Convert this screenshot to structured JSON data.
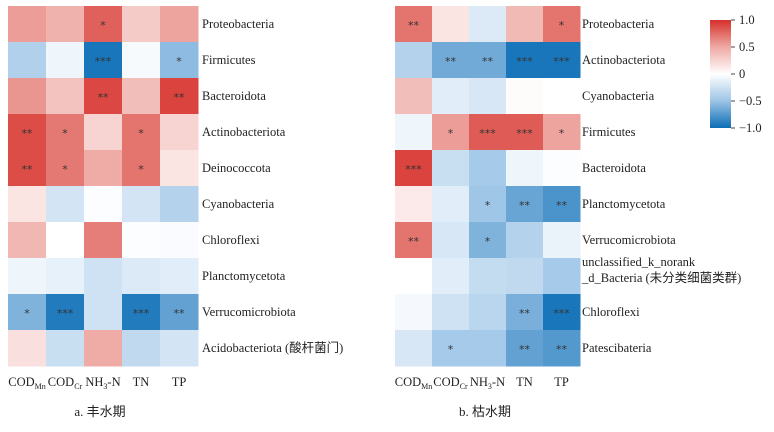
{
  "chart_data": [
    {
      "type": "heatmap",
      "title": "a. 丰水期",
      "columns": [
        "CODMn",
        "CODCr",
        "NH3-N",
        "TN",
        "TP"
      ],
      "column_labels": [
        {
          "base": "COD",
          "sub": "Mn",
          "rest": ""
        },
        {
          "base": "COD",
          "sub": "Cr",
          "rest": ""
        },
        {
          "base": "NH",
          "sub": "3",
          "rest": "-N"
        },
        {
          "base": "TN",
          "sub": "",
          "rest": ""
        },
        {
          "base": "TP",
          "sub": "",
          "rest": ""
        }
      ],
      "rows": [
        "Proteobacteria",
        "Firmicutes",
        "Bacteroidota",
        "Actinobacteriota",
        "Deinococcota",
        "Cyanobacteria",
        "Chloroflexi",
        "Planctomycetota",
        "Verrucomicrobiota",
        "Acidobacteriota (酸杆菌门)"
      ],
      "values": [
        [
          0.55,
          0.45,
          0.8,
          0.3,
          0.52
        ],
        [
          -0.4,
          -0.08,
          -0.95,
          -0.04,
          -0.55
        ],
        [
          0.58,
          0.35,
          0.9,
          0.38,
          0.92
        ],
        [
          0.88,
          0.7,
          0.25,
          0.72,
          0.25
        ],
        [
          0.88,
          0.7,
          0.48,
          0.72,
          0.15
        ],
        [
          0.15,
          -0.22,
          -0.02,
          -0.22,
          -0.38
        ],
        [
          0.42,
          0.0,
          0.68,
          -0.02,
          -0.03
        ],
        [
          -0.08,
          -0.12,
          -0.25,
          -0.18,
          -0.15
        ],
        [
          -0.6,
          -0.92,
          -0.25,
          -0.92,
          -0.7
        ],
        [
          0.18,
          -0.28,
          0.48,
          -0.32,
          -0.22
        ]
      ],
      "significance": [
        [
          "",
          "",
          "*",
          "",
          ""
        ],
        [
          "",
          "",
          "***",
          "",
          "*"
        ],
        [
          "",
          "",
          "**",
          "",
          "**"
        ],
        [
          "**",
          "*",
          "",
          "*",
          ""
        ],
        [
          "**",
          "*",
          "",
          "*",
          ""
        ],
        [
          "",
          "",
          "",
          "",
          ""
        ],
        [
          "",
          "",
          "",
          "",
          ""
        ],
        [
          "",
          "",
          "",
          "",
          ""
        ],
        [
          "*",
          "***",
          "",
          "***",
          "**"
        ],
        [
          "",
          "",
          "",
          "",
          ""
        ]
      ],
      "vmin": -1.0,
      "vmax": 1.0
    },
    {
      "type": "heatmap",
      "title": "b. 枯水期",
      "columns": [
        "CODMn",
        "CODCr",
        "NH3-N",
        "TN",
        "TP"
      ],
      "column_labels": [
        {
          "base": "COD",
          "sub": "Mn",
          "rest": ""
        },
        {
          "base": "COD",
          "sub": "Cr",
          "rest": ""
        },
        {
          "base": "NH",
          "sub": "3",
          "rest": "-N"
        },
        {
          "base": "TN",
          "sub": "",
          "rest": ""
        },
        {
          "base": "TP",
          "sub": "",
          "rest": ""
        }
      ],
      "rows": [
        "Proteobacteria",
        "Actinobacteriota",
        "Cyanobacteria",
        "Firmicutes",
        "Bacteroidota",
        "Planctomycetota",
        "Verrucomicrobiota",
        "unclassified_k_norank_d_Bacteria (未分类细菌类群)",
        "Chloroflexi",
        "Patescibateria"
      ],
      "row_label_lines": [
        [
          "Proteobacteria"
        ],
        [
          "Actinobacteriota"
        ],
        [
          "Cyanobacteria"
        ],
        [
          "Firmicutes"
        ],
        [
          "Bacteroidota"
        ],
        [
          "Planctomycetota"
        ],
        [
          "Verrucomicrobiota"
        ],
        [
          "unclassified_k_norank",
          "_d_Bacteria (未分类细菌类群)"
        ],
        [
          "Chloroflexi"
        ],
        [
          "Patescibateria"
        ]
      ],
      "values": [
        [
          0.72,
          0.15,
          -0.18,
          0.4,
          0.72
        ],
        [
          -0.38,
          -0.65,
          -0.65,
          -0.95,
          -0.95
        ],
        [
          0.38,
          -0.15,
          -0.2,
          0.02,
          0.0
        ],
        [
          -0.08,
          0.55,
          0.82,
          0.82,
          0.52
        ],
        [
          0.92,
          -0.28,
          -0.45,
          -0.08,
          -0.02
        ],
        [
          0.12,
          -0.15,
          -0.48,
          -0.68,
          -0.78
        ],
        [
          0.72,
          -0.2,
          -0.6,
          -0.38,
          -0.1
        ],
        [
          0.0,
          -0.15,
          -0.3,
          -0.32,
          -0.45
        ],
        [
          -0.05,
          -0.25,
          -0.35,
          -0.62,
          -0.95
        ],
        [
          -0.2,
          -0.45,
          -0.45,
          -0.7,
          -0.75
        ]
      ],
      "significance": [
        [
          "**",
          "",
          "",
          "",
          "*"
        ],
        [
          "",
          "**",
          "**",
          "***",
          "***"
        ],
        [
          "",
          "",
          "",
          "",
          ""
        ],
        [
          "",
          "*",
          "***",
          "***",
          "*"
        ],
        [
          "***",
          "",
          "",
          "",
          ""
        ],
        [
          "",
          "",
          "*",
          "**",
          "**"
        ],
        [
          "**",
          "",
          "*",
          "",
          ""
        ],
        [
          "",
          "",
          "",
          "",
          ""
        ],
        [
          "",
          "",
          "",
          "**",
          "***"
        ],
        [
          "",
          "*",
          "",
          "**",
          "**"
        ]
      ],
      "vmin": -1.0,
      "vmax": 1.0
    }
  ],
  "colorbar": {
    "ticks": [
      "1.0",
      "0.5",
      "0",
      "−0.5",
      "−1.0"
    ],
    "tick_values": [
      1.0,
      0.5,
      0,
      -0.5,
      -1.0
    ],
    "colors": {
      "high": "#d6302b",
      "mid": "#ffffff",
      "low": "#0b6db5"
    }
  }
}
